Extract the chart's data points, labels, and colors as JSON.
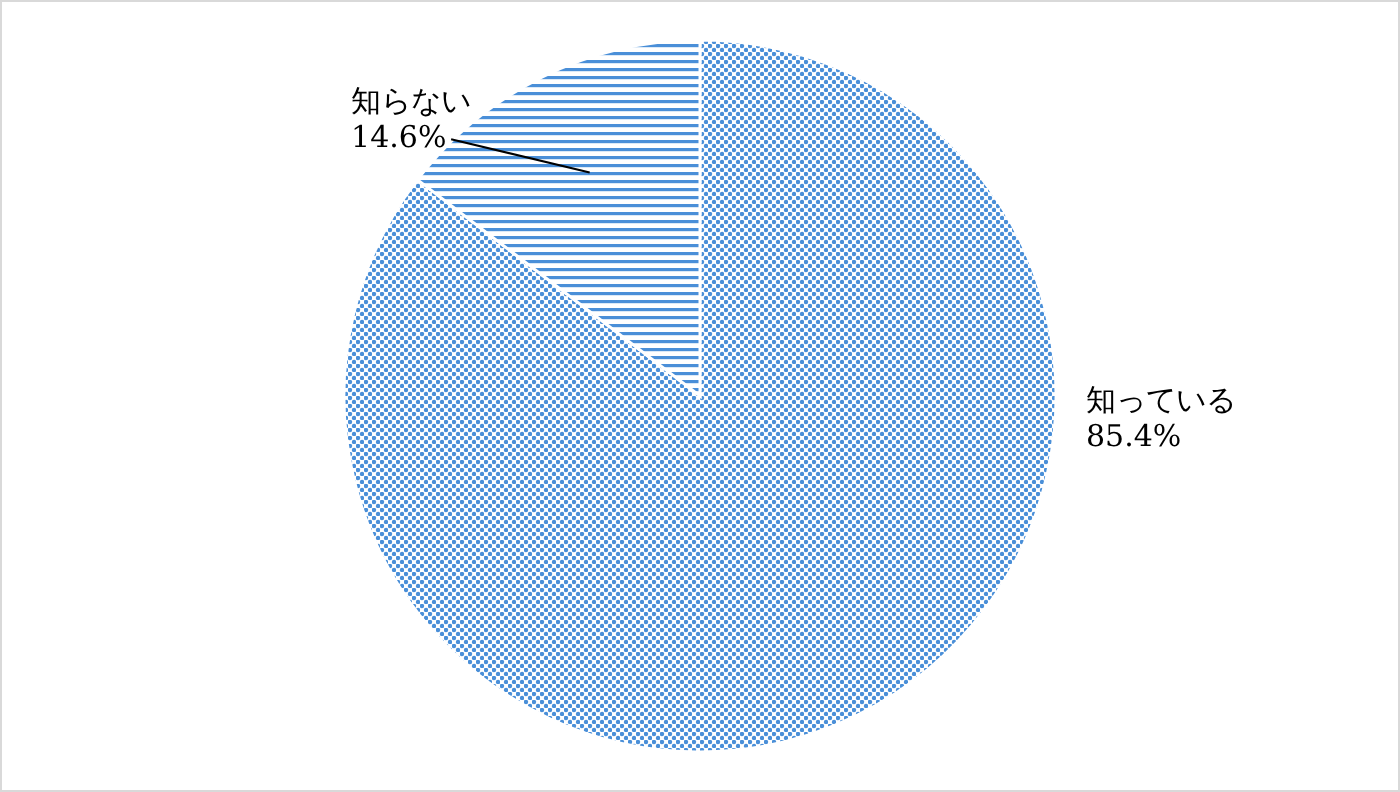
{
  "chart_data": {
    "type": "pie",
    "categories": [
      "知っている",
      "知らない"
    ],
    "values": [
      85.4,
      14.6
    ],
    "value_labels": [
      "85.4%",
      "14.6%"
    ],
    "colors": [
      "#4a8fd8",
      "#4a8fd8"
    ]
  }
}
